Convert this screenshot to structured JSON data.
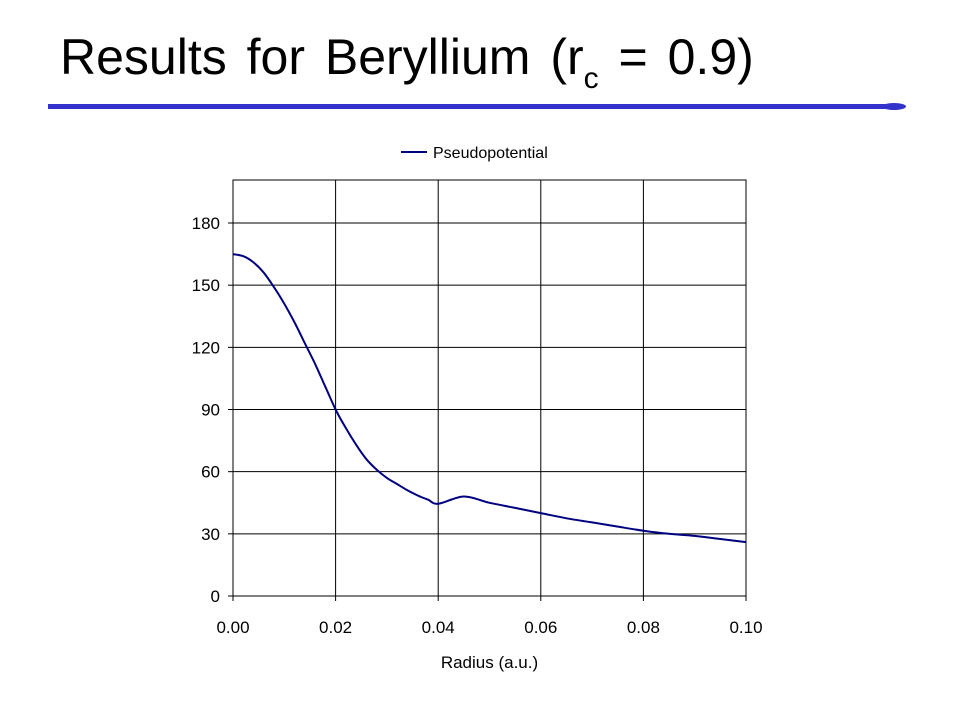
{
  "slide": {
    "title_main": "Results for Beryllium (r",
    "title_sub": "c",
    "title_end": " = 0.9)"
  },
  "colors": {
    "accent": "#3333cc",
    "series": "#000080",
    "grid": "#000000"
  },
  "chart_data": {
    "type": "line",
    "xlabel": "Radius (a.u.)",
    "ylabel": "",
    "xlim": [
      0,
      0.1
    ],
    "ylim": [
      0,
      200
    ],
    "xticks": [
      "0.00",
      "0.02",
      "0.04",
      "0.06",
      "0.08",
      "0.10"
    ],
    "yticks": [
      "0",
      "30",
      "60",
      "90",
      "120",
      "150",
      "180"
    ],
    "grid": true,
    "legend_position": "top",
    "series": [
      {
        "name": "Pseudopotential",
        "x": [
          0,
          0.002,
          0.004,
          0.006,
          0.008,
          0.01,
          0.012,
          0.014,
          0.016,
          0.018,
          0.02,
          0.022,
          0.024,
          0.026,
          0.028,
          0.03,
          0.032,
          0.034,
          0.036,
          0.038,
          0.04,
          0.045,
          0.05,
          0.055,
          0.06,
          0.065,
          0.07,
          0.075,
          0.08,
          0.085,
          0.09,
          0.095,
          0.1
        ],
        "y": [
          165,
          164,
          161,
          156,
          149,
          141,
          132,
          122,
          112,
          101,
          90,
          81,
          73,
          66,
          61,
          57,
          54,
          51,
          48.5,
          46.5,
          44.5,
          48,
          45,
          42.5,
          40,
          37.5,
          35.5,
          33.5,
          31.5,
          30,
          29,
          27.5,
          26
        ]
      }
    ]
  }
}
